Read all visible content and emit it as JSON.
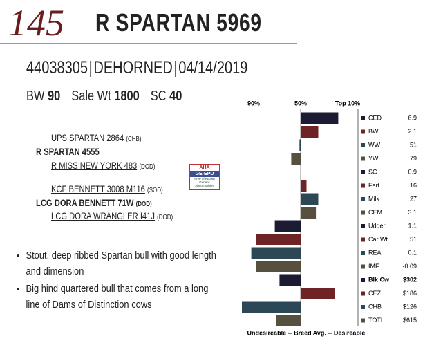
{
  "header": {
    "lot": "145",
    "name": "R SPARTAN 5969",
    "registration": "44038305",
    "status": "DEHORNED",
    "birth_date": "04/14/2019"
  },
  "stats": [
    {
      "label": "BW",
      "value": "90"
    },
    {
      "label": "Sale Wt",
      "value": "1800"
    },
    {
      "label": "SC",
      "value": "40"
    }
  ],
  "pedigree": {
    "sire_sire": "UPS SPARTAN 2864",
    "sire_sire_tag": "(CHB)",
    "sire": "R SPARTAN 4555",
    "sire_dam": "R MISS NEW YORK 483",
    "sire_dam_tag": "(DOD)",
    "dam_sire": "KCF BENNETT 3008 M116",
    "dam_sire_tag": "(SOD)",
    "dam": "LCG DORA BENNETT 71W",
    "dam_tag": "(DOD)",
    "dam_dam": "LCG DORA WRANGLER I41J",
    "dam_dam_tag": "(DOD)"
  },
  "logo": [
    "AHA",
    "GE-EPD",
    "Free of Known Genetic Abnormalities"
  ],
  "bullets": [
    "Stout, deep ribbed Spartan bull with good length and dimension",
    "Big hind quartered bull that comes from a long line of Dams of Distinction cows"
  ],
  "chart_data": {
    "type": "bar",
    "orientation": "horizontal",
    "categories": [
      "CED",
      "BW",
      "WW",
      "YW",
      "SC",
      "Fert",
      "Milk",
      "CEM",
      "Udder",
      "Car Wt",
      "REA",
      "IMF",
      "Blk Cw",
      "CEZ",
      "CHB",
      "TOTL"
    ],
    "epd": [
      "6.9",
      "2.1",
      "51",
      "79",
      "0.9",
      "16",
      "27",
      "3.1",
      "1.1",
      "51",
      "0.1",
      "-0.09",
      "$302",
      "$186",
      "$126",
      "$615"
    ],
    "values": [
      18,
      35,
      51,
      58,
      50,
      45,
      35,
      37,
      72,
      88,
      92,
      88,
      68,
      21,
      100,
      71
    ],
    "colors": [
      "#1b1b33",
      "#6e2324",
      "#2c4856",
      "#58503f",
      "#1b1b33",
      "#6e2324",
      "#2c4856",
      "#58503f",
      "#1b1b33",
      "#6e2324",
      "#2c4856",
      "#58503f",
      "#1b1b33",
      "#6e2324",
      "#2c4856",
      "#58503f"
    ],
    "xlim": [
      100,
      0
    ],
    "xticks": [
      {
        "value": 90,
        "label": "90%"
      },
      {
        "value": 50,
        "label": "50%"
      },
      {
        "value": 10,
        "label": "Top 10%"
      }
    ],
    "xlabel": "Undesireable -- Breed Avg. -- Desireable"
  }
}
